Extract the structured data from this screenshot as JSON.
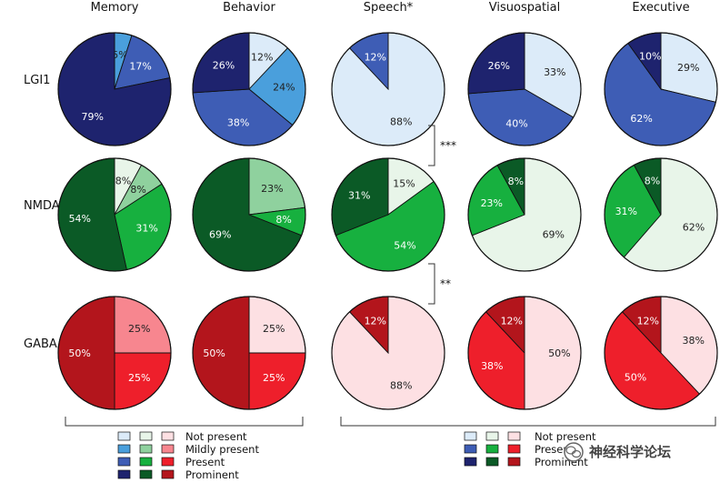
{
  "chart_data": {
    "type": "pie",
    "columns": [
      "Memory",
      "Behavior",
      "Speech*",
      "Visuospatial",
      "Executive"
    ],
    "rows": [
      {
        "label": "LGI1",
        "label_sub": "",
        "label_tail": "",
        "colors": {
          "none": "#dcebf9",
          "mild": "#4a9fdc",
          "present": "#3e5db5",
          "prominent": "#1e236e"
        },
        "pies": [
          {
            "column": "Memory",
            "slices": [
              {
                "category": "Mildly present",
                "value": 5,
                "label": "5%"
              },
              {
                "category": "Present",
                "value": 17,
                "label": "17%"
              },
              {
                "category": "Prominent",
                "value": 79,
                "label": "79%"
              }
            ]
          },
          {
            "column": "Behavior",
            "slices": [
              {
                "category": "Not present",
                "value": 12,
                "label": "12%"
              },
              {
                "category": "Mildly present",
                "value": 24,
                "label": "24%"
              },
              {
                "category": "Present",
                "value": 38,
                "label": "38%"
              },
              {
                "category": "Prominent",
                "value": 26,
                "label": "26%"
              }
            ]
          },
          {
            "column": "Speech*",
            "slices": [
              {
                "category": "Not present",
                "value": 88,
                "label": "88%"
              },
              {
                "category": "Present",
                "value": 12,
                "label": "12%"
              }
            ]
          },
          {
            "column": "Visuospatial",
            "slices": [
              {
                "category": "Not present",
                "value": 33,
                "label": "33%"
              },
              {
                "category": "Present",
                "value": 40,
                "label": "40%"
              },
              {
                "category": "Prominent",
                "value": 26,
                "label": "26%"
              }
            ]
          },
          {
            "column": "Executive",
            "slices": [
              {
                "category": "Not present",
                "value": 29,
                "label": "29%"
              },
              {
                "category": "Present",
                "value": 62,
                "label": "62%"
              },
              {
                "category": "Prominent",
                "value": 10,
                "label": "10%"
              }
            ]
          }
        ]
      },
      {
        "label": "NMDAR",
        "label_sub": "",
        "label_tail": "",
        "colors": {
          "none": "#e8f5e9",
          "mild": "#8fd19e",
          "present": "#17b03f",
          "prominent": "#0b5a26"
        },
        "pies": [
          {
            "column": "Memory",
            "slices": [
              {
                "category": "Not present",
                "value": 8,
                "label": "8%"
              },
              {
                "category": "Mildly present",
                "value": 8,
                "label": "8%"
              },
              {
                "category": "Present",
                "value": 31,
                "label": "31%"
              },
              {
                "category": "Prominent",
                "value": 54,
                "label": "54%"
              }
            ]
          },
          {
            "column": "Behavior",
            "slices": [
              {
                "category": "Mildly present",
                "value": 23,
                "label": "23%"
              },
              {
                "category": "Present",
                "value": 8,
                "label": "8%"
              },
              {
                "category": "Prominent",
                "value": 69,
                "label": "69%"
              }
            ]
          },
          {
            "column": "Speech*",
            "slices": [
              {
                "category": "Not present",
                "value": 15,
                "label": "15%"
              },
              {
                "category": "Present",
                "value": 54,
                "label": "54%"
              },
              {
                "category": "Prominent",
                "value": 31,
                "label": "31%"
              }
            ]
          },
          {
            "column": "Visuospatial",
            "slices": [
              {
                "category": "Not present",
                "value": 69,
                "label": "69%"
              },
              {
                "category": "Present",
                "value": 23,
                "label": "23%"
              },
              {
                "category": "Prominent",
                "value": 8,
                "label": "8%"
              }
            ]
          },
          {
            "column": "Executive",
            "slices": [
              {
                "category": "Not present",
                "value": 62,
                "label": "62%"
              },
              {
                "category": "Present",
                "value": 31,
                "label": "31%"
              },
              {
                "category": "Prominent",
                "value": 8,
                "label": "8%"
              }
            ]
          }
        ]
      },
      {
        "label": "GABA",
        "label_sub": "B",
        "label_tail": "R",
        "colors": {
          "none": "#fde0e3",
          "mild": "#f7868f",
          "present": "#ee1f2b",
          "prominent": "#b3151c"
        },
        "pies": [
          {
            "column": "Memory",
            "slices": [
              {
                "category": "Mildly present",
                "value": 25,
                "label": "25%"
              },
              {
                "category": "Present",
                "value": 25,
                "label": "25%"
              },
              {
                "category": "Prominent",
                "value": 50,
                "label": "50%"
              }
            ]
          },
          {
            "column": "Behavior",
            "slices": [
              {
                "category": "Not present",
                "value": 25,
                "label": "25%"
              },
              {
                "category": "Present",
                "value": 25,
                "label": "25%"
              },
              {
                "category": "Prominent",
                "value": 50,
                "label": "50%"
              }
            ]
          },
          {
            "column": "Speech*",
            "slices": [
              {
                "category": "Not present",
                "value": 88,
                "label": "88%"
              },
              {
                "category": "Prominent",
                "value": 12,
                "label": "12%"
              }
            ]
          },
          {
            "column": "Visuospatial",
            "slices": [
              {
                "category": "Not present",
                "value": 50,
                "label": "50%"
              },
              {
                "category": "Present",
                "value": 38,
                "label": "38%"
              },
              {
                "category": "Prominent",
                "value": 12,
                "label": "12%"
              }
            ]
          },
          {
            "column": "Executive",
            "slices": [
              {
                "category": "Not present",
                "value": 38,
                "label": "38%"
              },
              {
                "category": "Present",
                "value": 50,
                "label": "50%"
              },
              {
                "category": "Prominent",
                "value": 12,
                "label": "12%"
              }
            ]
          }
        ]
      }
    ],
    "significance": [
      {
        "between": [
          "LGI1",
          "NMDAR"
        ],
        "column": "Speech*",
        "label": "***"
      },
      {
        "between": [
          "NMDAR",
          "GABABR"
        ],
        "column": "Speech*",
        "label": "**"
      }
    ],
    "legends": [
      {
        "columns": [
          "Memory",
          "Behavior"
        ],
        "swatch_sets": 3,
        "entries": [
          "Not present",
          "Mildly present",
          "Present",
          "Prominent"
        ]
      },
      {
        "columns": [
          "Speech*",
          "Visuospatial",
          "Executive"
        ],
        "swatch_sets": 3,
        "entries": [
          "Not present",
          "Present",
          "Prominent"
        ]
      }
    ]
  },
  "watermark": {
    "text": "神经科学论坛",
    "icon": "wechat-icon"
  }
}
